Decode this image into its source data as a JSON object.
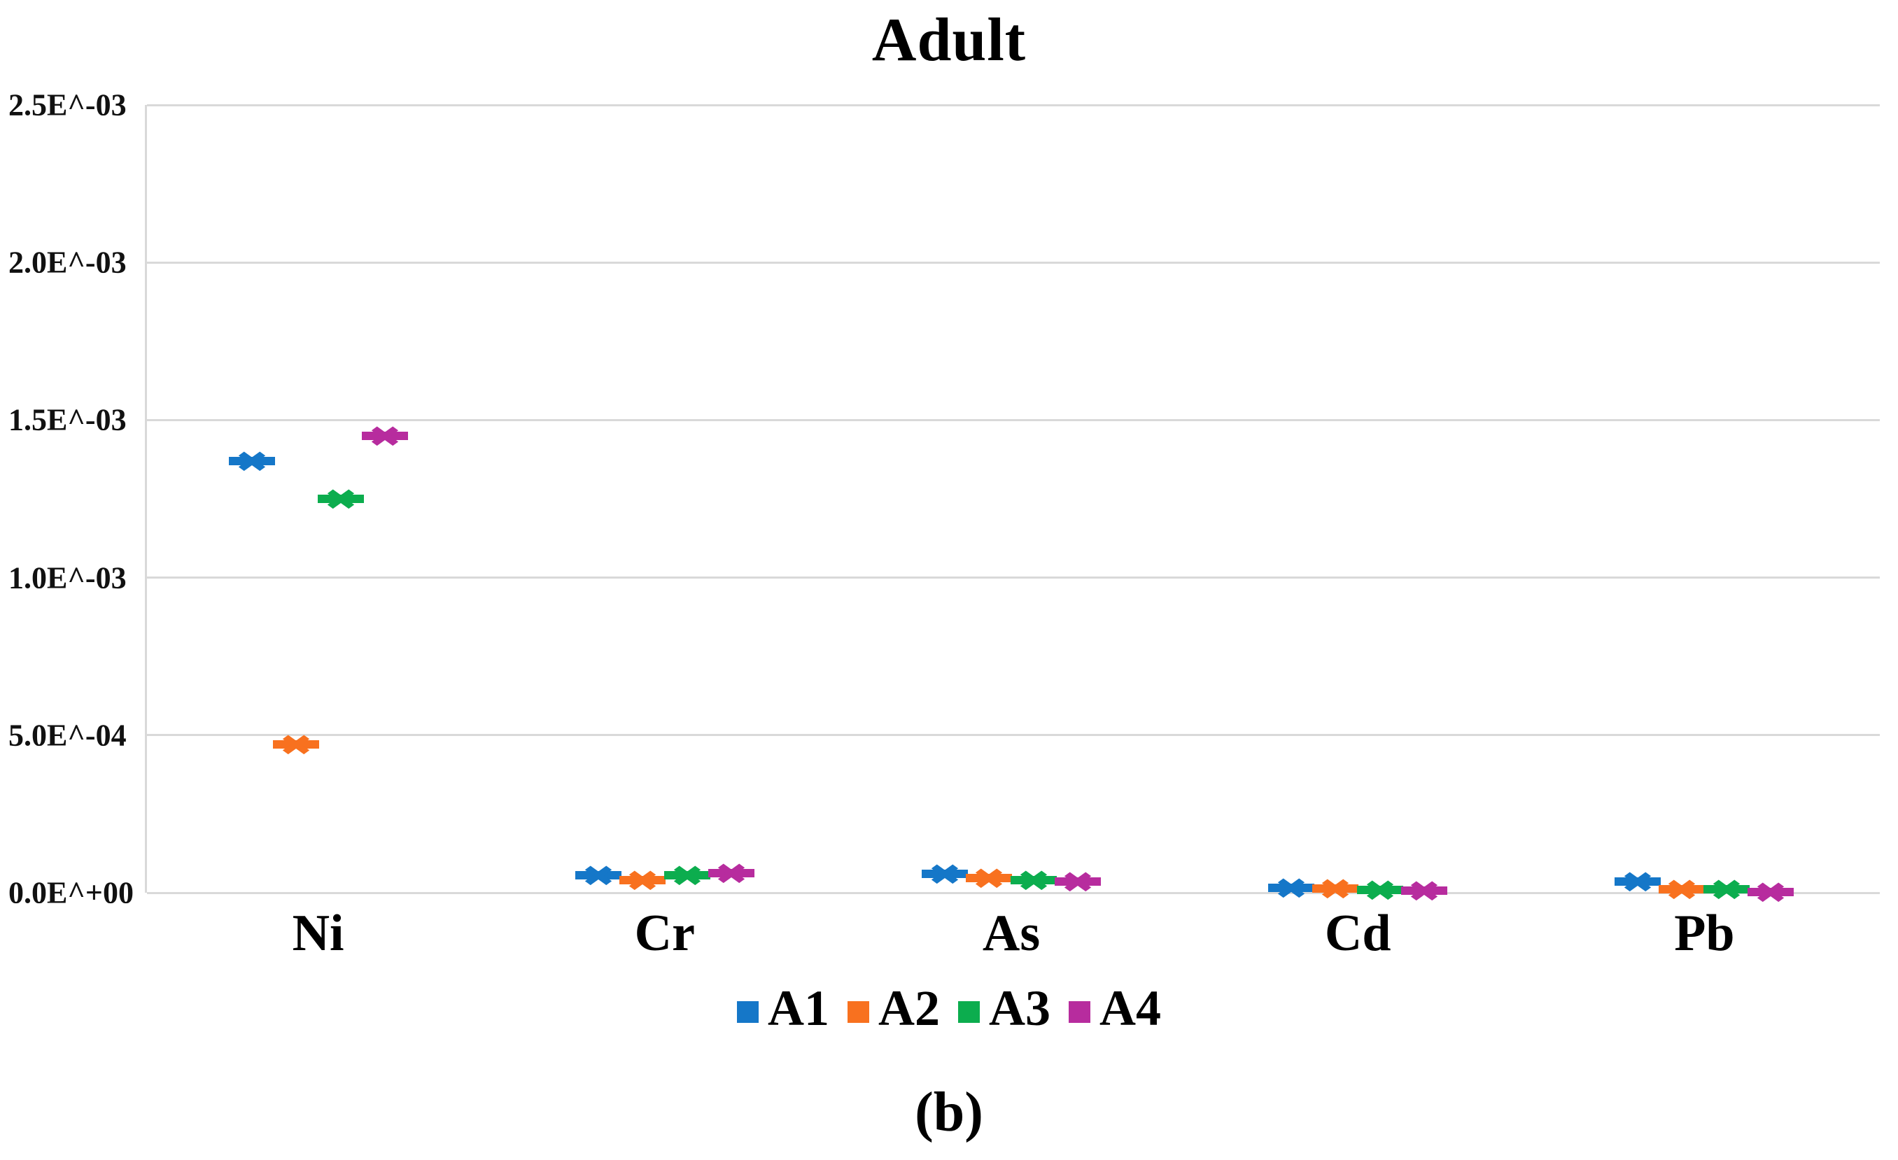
{
  "title": "Adult",
  "caption": "(b)",
  "chart_data": {
    "type": "scatter",
    "title": "Adult",
    "marker_style": "x-with-horizontal-dash",
    "grid": true,
    "legend_position": "bottom",
    "xlabel": "",
    "ylabel": "",
    "ylim": [
      0,
      0.0025
    ],
    "y_ticks": [
      "0.0E^+00",
      "5.0E^-04",
      "1.0E^-03",
      "1.5E^-03",
      "2.0E^-03",
      "2.5E^-03"
    ],
    "categories": [
      "Ni",
      "Cr",
      "As",
      "Cd",
      "Pb"
    ],
    "series": [
      {
        "name": "A1",
        "color": "#1577c8",
        "values": [
          0.00137,
          5.5e-05,
          6e-05,
          1.5e-05,
          3.5e-05
        ]
      },
      {
        "name": "A2",
        "color": "#f8711f",
        "values": [
          0.00047,
          4e-05,
          4.7e-05,
          1.3e-05,
          1.2e-05
        ]
      },
      {
        "name": "A3",
        "color": "#0cad4e",
        "values": [
          0.00125,
          5.5e-05,
          4e-05,
          8e-06,
          1.2e-05
        ]
      },
      {
        "name": "A4",
        "color": "#b72c9e",
        "values": [
          0.00145,
          6.2e-05,
          3.6e-05,
          6e-06,
          3e-06
        ]
      }
    ],
    "gridline_color": "#d9d9d9"
  }
}
